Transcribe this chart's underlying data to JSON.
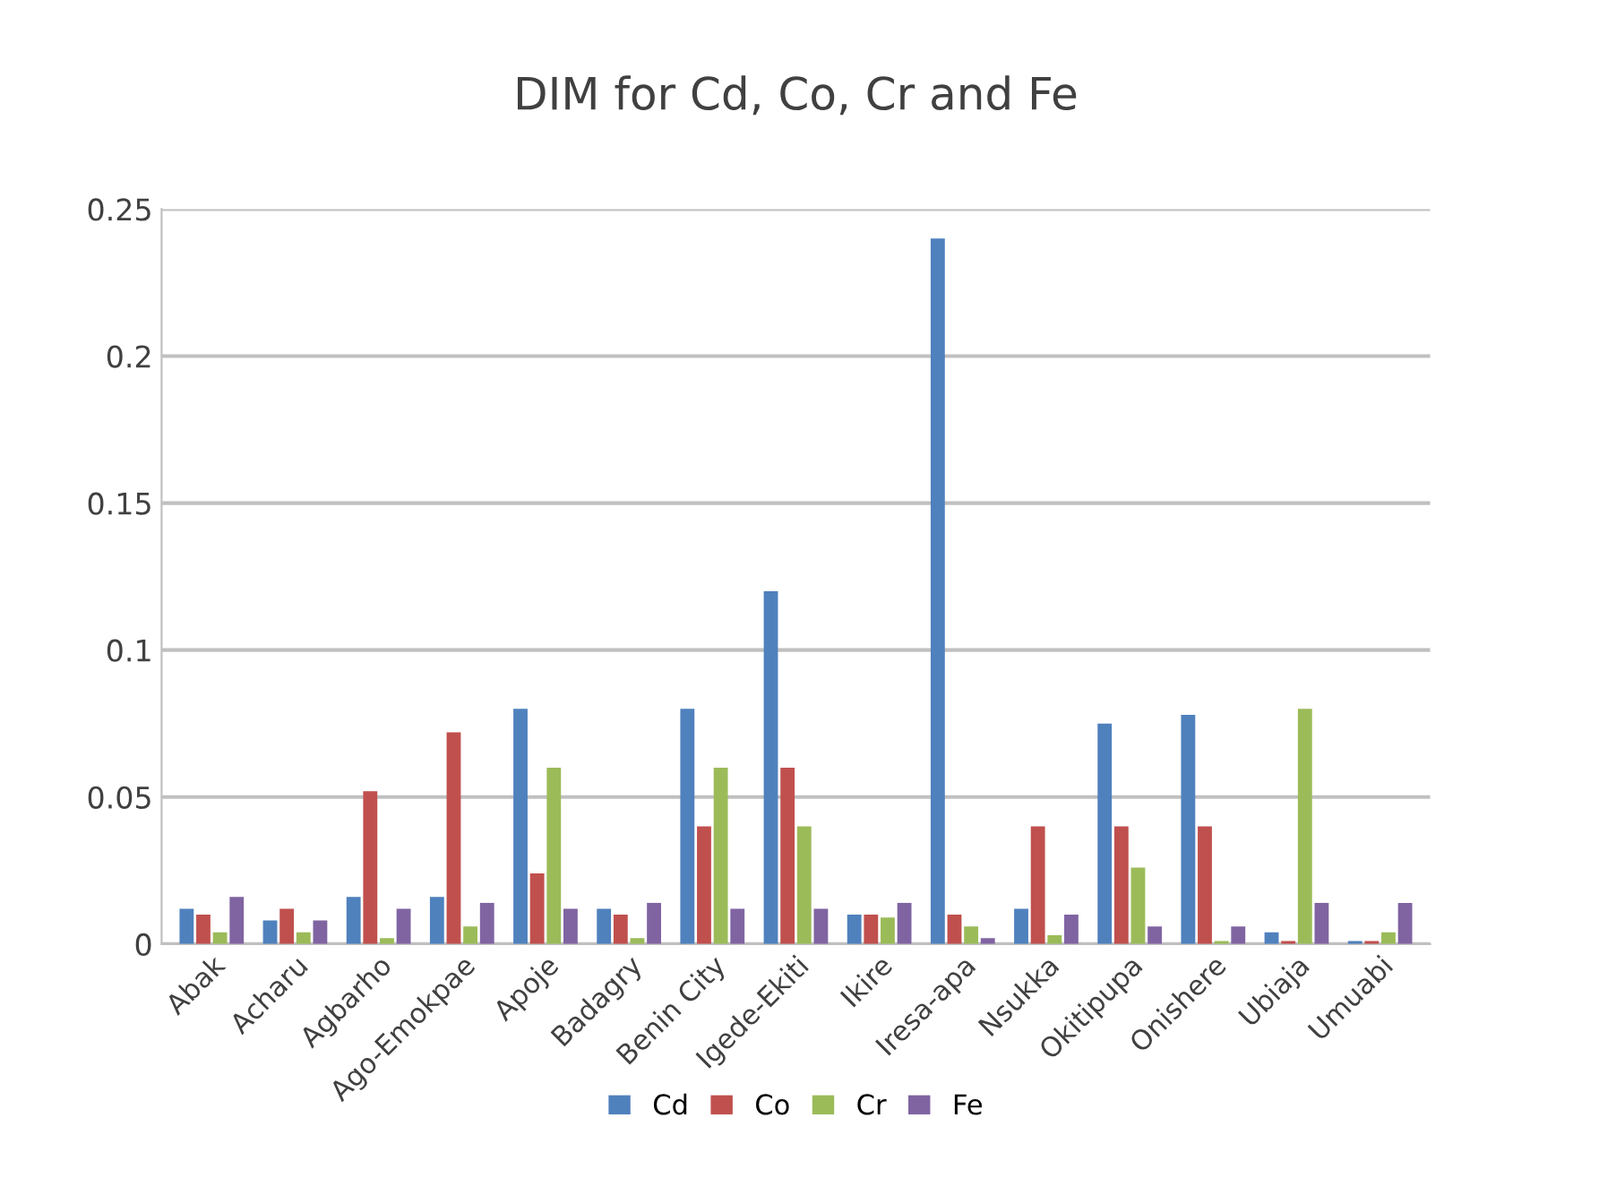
{
  "chart_data": {
    "type": "bar",
    "title": "DIM for Cd, Co, Cr and Fe",
    "categories": [
      "Abak",
      "Acharu",
      "Agbarho",
      "Ago-Emokpae",
      "Apoje",
      "Badagry",
      "Benin City",
      "Igede-Ekiti",
      "Ikire",
      "Iresa-apa",
      "Nsukka",
      "Okitipupa",
      "Onishere",
      "Ubiaja",
      "Umuabi"
    ],
    "series": [
      {
        "name": "Cd",
        "color": "#4f81bd",
        "values": [
          0.012,
          0.008,
          0.016,
          0.016,
          0.08,
          0.012,
          0.08,
          0.12,
          0.01,
          0.24,
          0.012,
          0.075,
          0.078,
          0.004,
          0.001
        ]
      },
      {
        "name": "Co",
        "color": "#c0504d",
        "values": [
          0.01,
          0.012,
          0.052,
          0.072,
          0.024,
          0.01,
          0.04,
          0.06,
          0.01,
          0.01,
          0.04,
          0.04,
          0.04,
          0.001,
          0.001
        ]
      },
      {
        "name": "Cr",
        "color": "#9bbb59",
        "values": [
          0.004,
          0.004,
          0.002,
          0.006,
          0.06,
          0.002,
          0.06,
          0.04,
          0.009,
          0.006,
          0.003,
          0.026,
          0.001,
          0.08,
          0.004
        ]
      },
      {
        "name": "Fe",
        "color": "#8064a2",
        "values": [
          0.016,
          0.008,
          0.012,
          0.014,
          0.012,
          0.014,
          0.012,
          0.012,
          0.014,
          0.002,
          0.01,
          0.006,
          0.006,
          0.014,
          0.014
        ]
      }
    ],
    "ylim": [
      0,
      0.25
    ],
    "yticks": [
      0,
      0.05,
      0.1,
      0.15,
      0.2,
      0.25
    ],
    "grid": "y",
    "legend": "bottom"
  }
}
